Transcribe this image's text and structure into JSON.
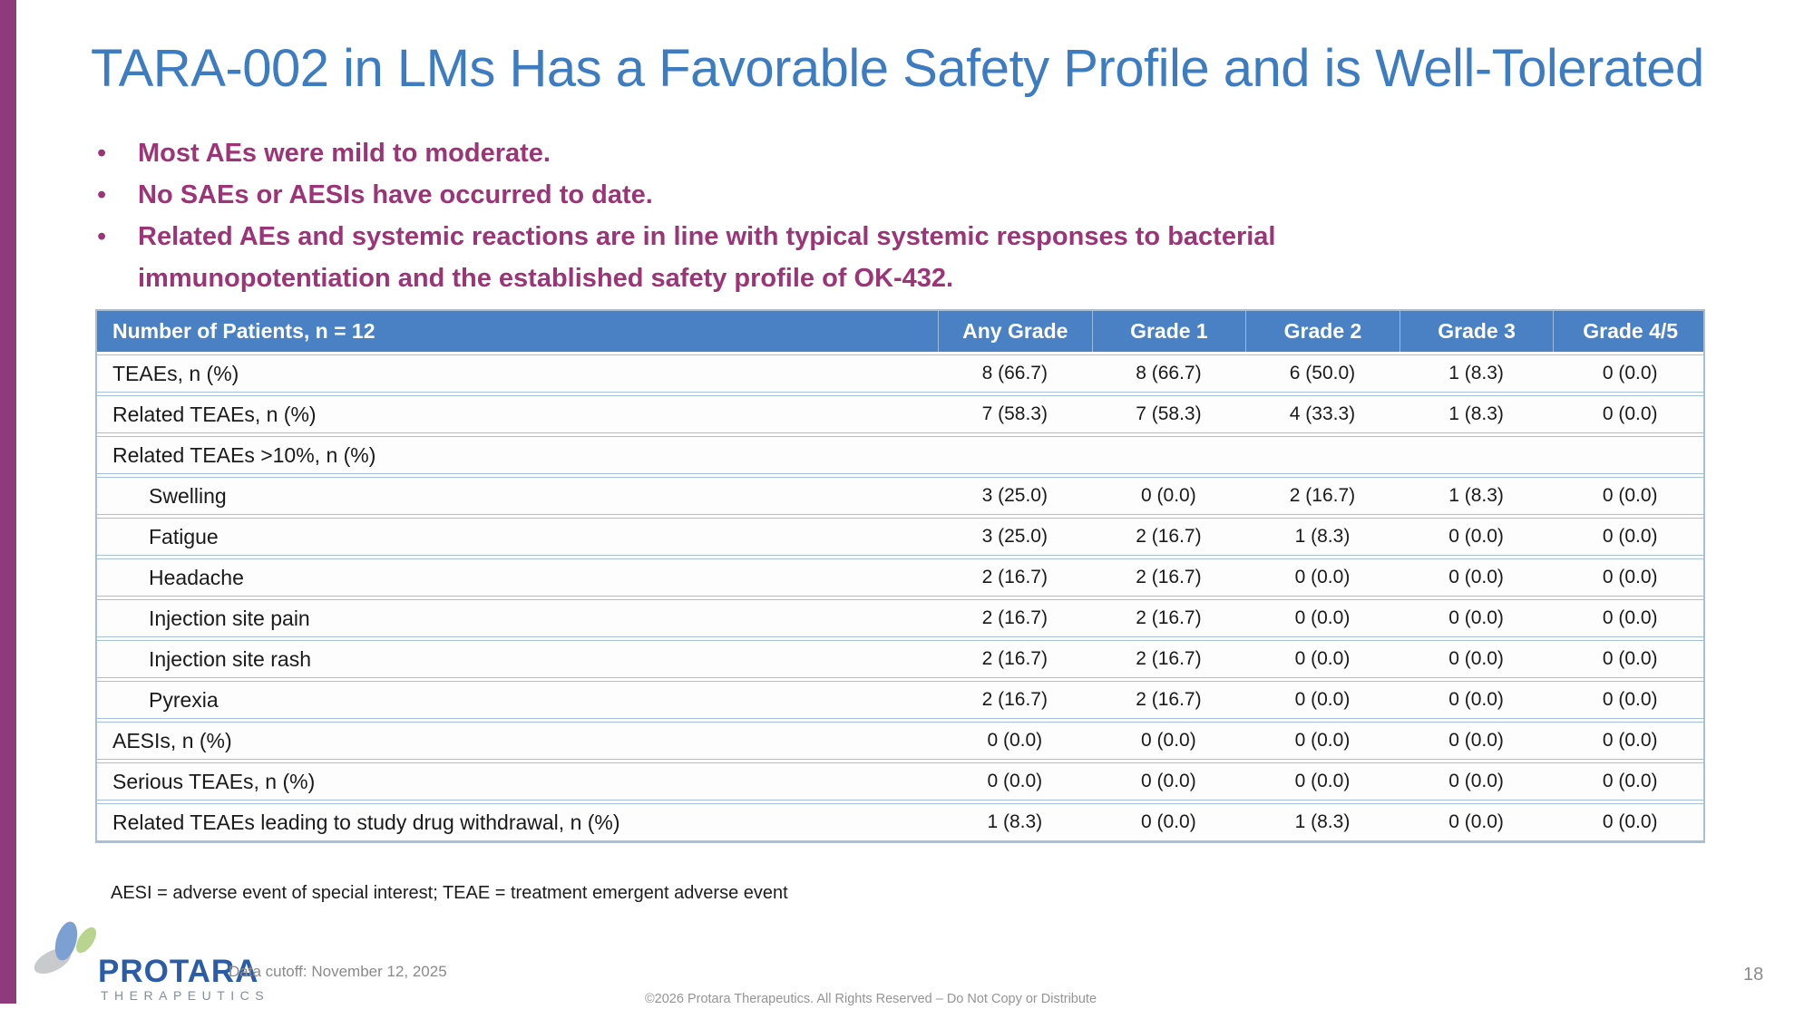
{
  "slide": {
    "title": "TARA-002 in LMs Has a Favorable Safety Profile and is Well-Tolerated",
    "bullets": [
      "Most AEs were mild to moderate.",
      "No SAEs or AESIs have occurred to date.",
      "Related AEs and systemic reactions are in line with typical systemic responses to bacterial immunopotentiation and the established safety profile of OK-432."
    ],
    "footnote": "AESI = adverse event of special interest; TEAE = treatment emergent adverse event",
    "data_cutoff": "Data cutoff: November 12, 2025",
    "copyright": "©2026 Protara Therapeutics. All Rights Reserved – Do Not Copy or Distribute",
    "page_number": "18"
  },
  "logo": {
    "wordmark": "PROTARA",
    "subtext": "THERAPEUTICS"
  },
  "table": {
    "columns": [
      "Number of Patients, n = 12",
      "Any Grade",
      "Grade 1",
      "Grade 2",
      "Grade 3",
      "Grade 4/5"
    ],
    "rows": [
      {
        "label": "TEAEs, n (%)",
        "indent": false,
        "values": [
          "8 (66.7)",
          "8 (66.7)",
          "6 (50.0)",
          "1 (8.3)",
          "0 (0.0)"
        ]
      },
      {
        "label": "Related TEAEs, n (%)",
        "indent": false,
        "values": [
          "7 (58.3)",
          "7 (58.3)",
          "4 (33.3)",
          "1 (8.3)",
          "0 (0.0)"
        ]
      },
      {
        "label": "Related TEAEs >10%, n (%)",
        "indent": false,
        "values": [
          "",
          "",
          "",
          "",
          ""
        ]
      },
      {
        "label": "Swelling",
        "indent": true,
        "values": [
          "3 (25.0)",
          "0 (0.0)",
          "2 (16.7)",
          "1 (8.3)",
          "0 (0.0)"
        ]
      },
      {
        "label": "Fatigue",
        "indent": true,
        "values": [
          "3 (25.0)",
          "2 (16.7)",
          "1 (8.3)",
          "0 (0.0)",
          "0 (0.0)"
        ]
      },
      {
        "label": "Headache",
        "indent": true,
        "values": [
          "2 (16.7)",
          "2 (16.7)",
          "0 (0.0)",
          "0 (0.0)",
          "0 (0.0)"
        ]
      },
      {
        "label": "Injection site pain",
        "indent": true,
        "values": [
          "2 (16.7)",
          "2 (16.7)",
          "0 (0.0)",
          "0 (0.0)",
          "0 (0.0)"
        ]
      },
      {
        "label": "Injection site rash",
        "indent": true,
        "values": [
          "2 (16.7)",
          "2 (16.7)",
          "0 (0.0)",
          "0 (0.0)",
          "0 (0.0)"
        ]
      },
      {
        "label": "Pyrexia",
        "indent": true,
        "values": [
          "2 (16.7)",
          "2 (16.7)",
          "0 (0.0)",
          "0 (0.0)",
          "0 (0.0)"
        ]
      },
      {
        "label": "AESIs, n (%)",
        "indent": false,
        "values": [
          "0 (0.0)",
          "0 (0.0)",
          "0 (0.0)",
          "0 (0.0)",
          "0 (0.0)"
        ]
      },
      {
        "label": "Serious TEAEs, n (%)",
        "indent": false,
        "values": [
          "0 (0.0)",
          "0 (0.0)",
          "0 (0.0)",
          "0 (0.0)",
          "0 (0.0)"
        ]
      },
      {
        "label": "Related TEAEs leading to study drug withdrawal, n (%)",
        "indent": false,
        "values": [
          "1 (8.3)",
          "0 (0.0)",
          "1 (8.3)",
          "0 (0.0)",
          "0 (0.0)"
        ]
      }
    ]
  },
  "colors": {
    "title_blue": "#3d7cc0",
    "bullet_purple": "#9c3478",
    "accent_bar_purple": "#8e3a7d",
    "table_header_blue": "#4a81c4",
    "table_border_blue": "#a6c0da",
    "logo_blue": "#2b5ca8",
    "logo_gray": "#848d99",
    "leaf_blue": "#7da0d2",
    "leaf_green": "#b8d48f",
    "leaf_gray": "#c9cacc"
  }
}
